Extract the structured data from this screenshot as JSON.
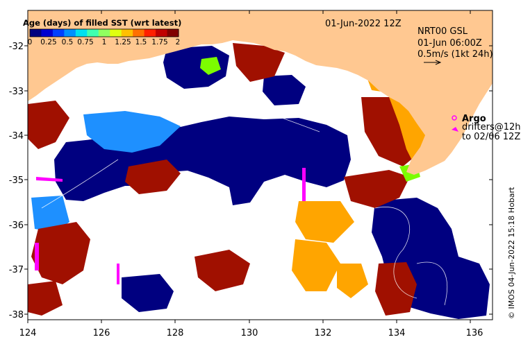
{
  "map": {
    "date_label": "01-Jun-2022 12Z",
    "product_label": "NRT00 GSL",
    "valid_label": "01-Jun 06:00Z",
    "vector_scale_label": "0.5m/s (1kt 24h)",
    "credit": "© IMOS 04-Jun-2022 15:18 Hobart",
    "argo_label": "Argo",
    "drifters_label": "drifters@12h",
    "drifters_to_label": "to 02/06 12Z",
    "x_ticks": [
      "124",
      "126",
      "128",
      "130",
      "132",
      "134",
      "136"
    ],
    "y_ticks": [
      "-32",
      "-33",
      "-34",
      "-35",
      "-36",
      "-37",
      "-38"
    ],
    "lon_range": [
      124,
      136.6
    ],
    "lat_range": [
      -38.1,
      -31.2
    ]
  },
  "colorbar": {
    "title": "Age (days) of filled SST (wrt latest)",
    "ticks": [
      "0",
      "0.25",
      "0.5",
      "0.75",
      "1",
      "1.25",
      "1.5",
      "1.75",
      "2"
    ],
    "colors": [
      "#00007f",
      "#0000d0",
      "#0040ff",
      "#0090ff",
      "#00e0f0",
      "#40ffb0",
      "#90ff60",
      "#e0ff10",
      "#ffc000",
      "#ff7000",
      "#ff2000",
      "#c00000",
      "#800000"
    ]
  },
  "colors": {
    "land": "#ffc891",
    "ocean_blank": "#ffffff",
    "deep_blue": "#000080",
    "mid_blue": "#1e90ff",
    "orange": "#ffa500",
    "darkred": "#a01000",
    "magenta": "#ff00ff",
    "green": "#7cfc00"
  },
  "chart_data": {
    "type": "heatmap",
    "title": "Age (days) of filled SST (wrt latest)",
    "xlabel": "",
    "ylabel": "",
    "xlim": [
      124,
      136.6
    ],
    "ylim": [
      -38.1,
      -31.2
    ],
    "colorbar_range": [
      0,
      2
    ]
  }
}
